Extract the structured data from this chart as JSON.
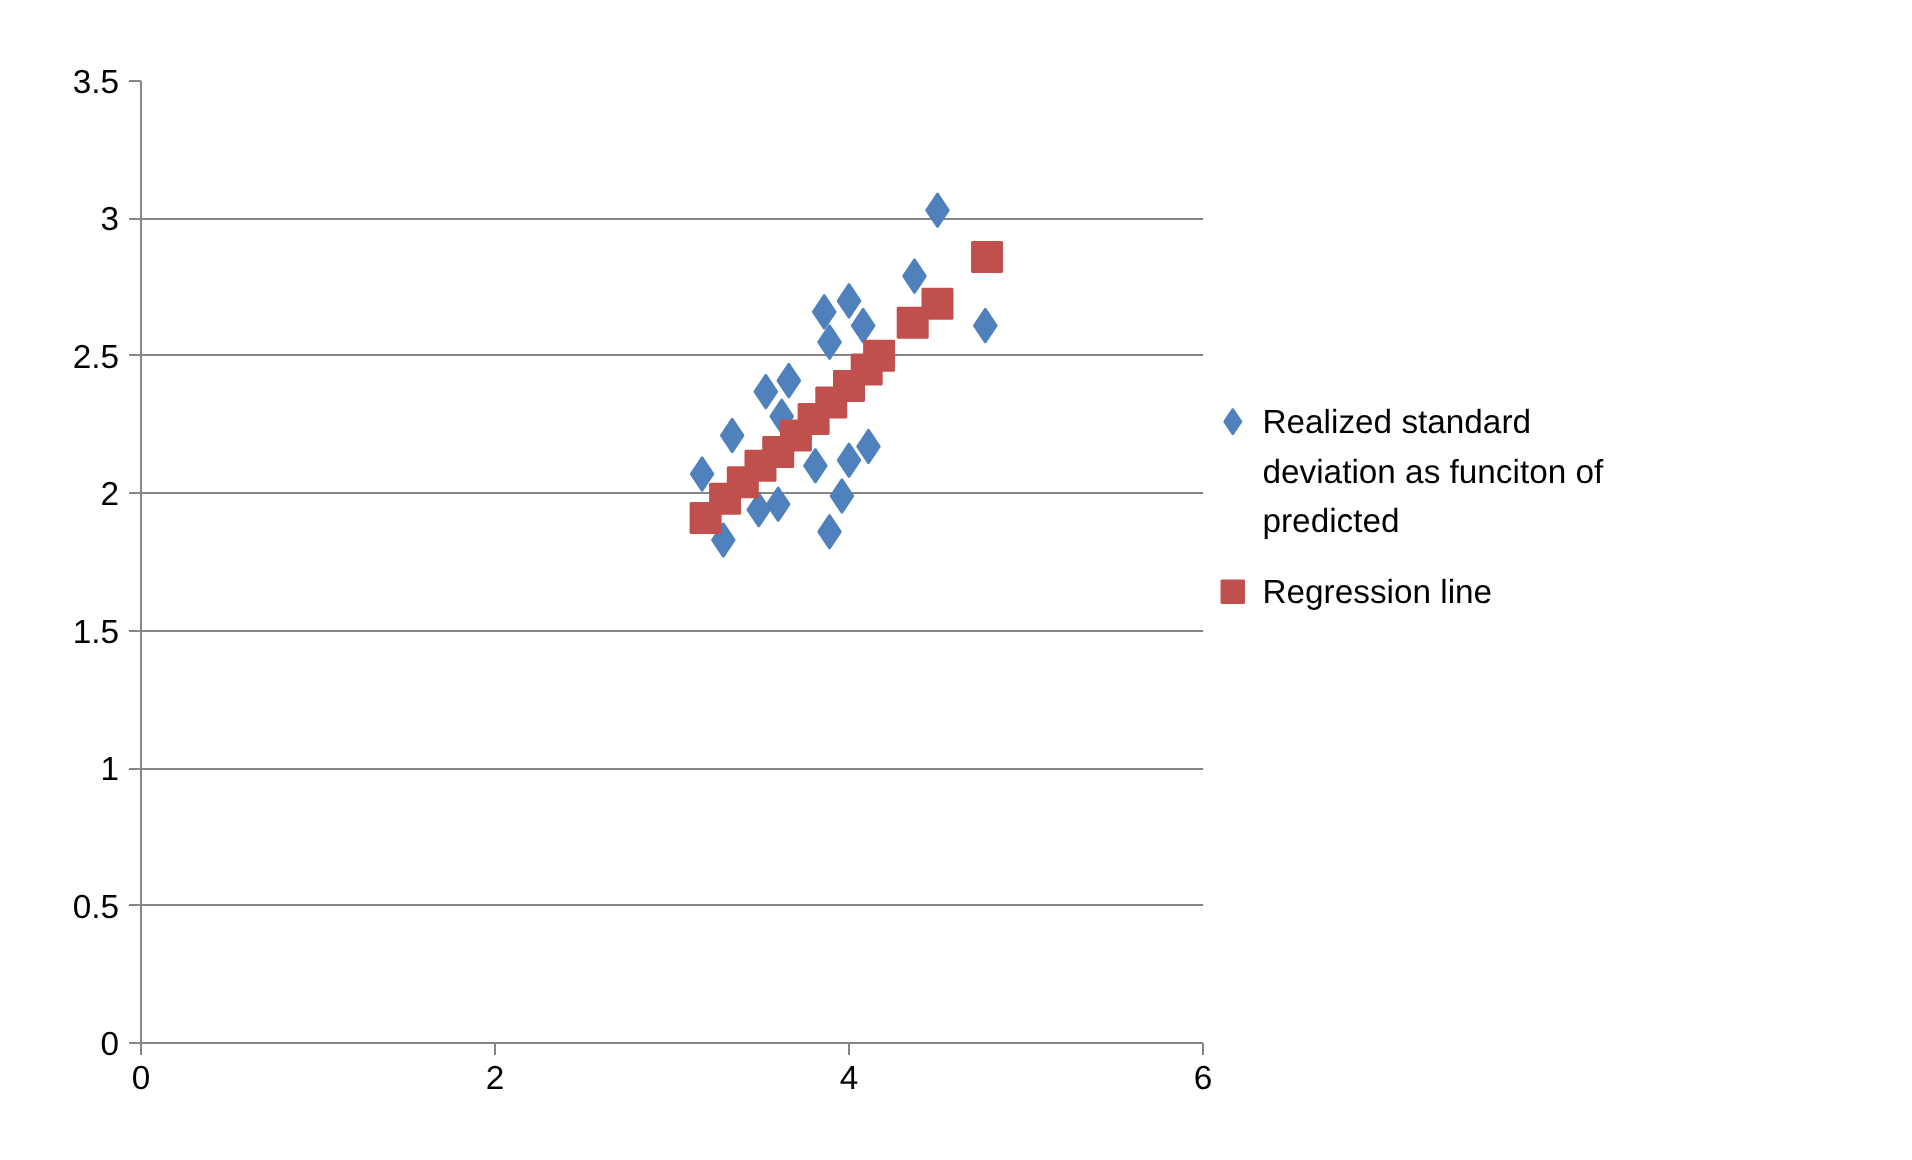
{
  "chart_data": {
    "type": "scatter",
    "xlim": [
      0,
      6
    ],
    "xticks": [
      0,
      2,
      4,
      6
    ],
    "ylim": [
      0,
      3.5
    ],
    "yticks": [
      0,
      0.5,
      1,
      1.5,
      2,
      2.5,
      3,
      3.5
    ],
    "grid": "y",
    "legend": "right",
    "series": [
      {
        "name": "Realized standard deviation as funciton of predicted",
        "color": "#4f81bd",
        "marker": "diamond",
        "x": [
          4.5,
          4.77,
          4.37,
          3.86,
          4.0,
          4.08,
          3.89,
          3.53,
          3.66,
          3.34,
          3.62,
          4.11,
          3.17,
          3.96,
          3.89,
          3.29,
          3.6,
          3.49,
          3.81,
          4.0
        ],
        "values": [
          3.03,
          2.61,
          2.79,
          2.66,
          2.7,
          2.61,
          2.55,
          2.37,
          2.41,
          2.21,
          2.28,
          2.17,
          2.07,
          1.99,
          1.86,
          1.83,
          1.96,
          1.94,
          2.1,
          2.12
        ]
      },
      {
        "name": "Regression line",
        "color": "#c0504d",
        "marker": "square",
        "x": [
          3.19,
          3.3,
          3.4,
          3.5,
          3.6,
          3.7,
          3.8,
          3.9,
          4.0,
          4.1,
          4.17,
          4.36,
          4.5,
          4.78
        ],
        "values": [
          1.91,
          1.98,
          2.04,
          2.1,
          2.15,
          2.21,
          2.27,
          2.33,
          2.39,
          2.45,
          2.5,
          2.62,
          2.69,
          2.86
        ]
      }
    ]
  }
}
